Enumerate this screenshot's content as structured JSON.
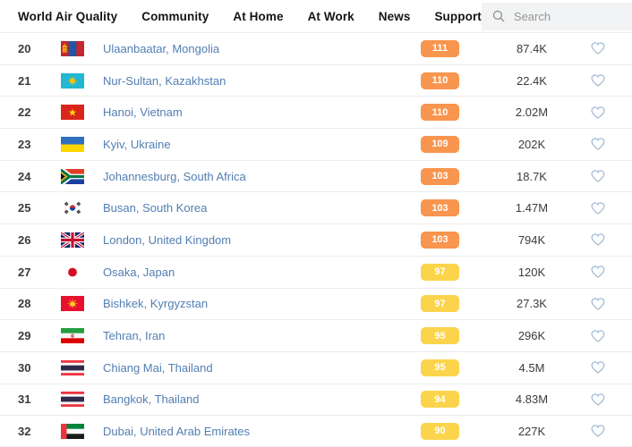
{
  "nav": {
    "items": [
      {
        "label": "World Air Quality"
      },
      {
        "label": "Community"
      },
      {
        "label": "At Home"
      },
      {
        "label": "At Work"
      },
      {
        "label": "News"
      },
      {
        "label": "Support"
      }
    ],
    "search": {
      "placeholder": "Search"
    }
  },
  "aqi_colors": {
    "orange": "#f8954e",
    "yellow": "#fbd44c"
  },
  "table": {
    "rows": [
      {
        "rank": "20",
        "flag": "mongolia",
        "city": "Ulaanbaatar, Mongolia",
        "aqi": "111",
        "level": "orange",
        "followers": "87.4K"
      },
      {
        "rank": "21",
        "flag": "kazakhstan",
        "city": "Nur-Sultan, Kazakhstan",
        "aqi": "110",
        "level": "orange",
        "followers": "22.4K"
      },
      {
        "rank": "22",
        "flag": "vietnam",
        "city": "Hanoi, Vietnam",
        "aqi": "110",
        "level": "orange",
        "followers": "2.02M"
      },
      {
        "rank": "23",
        "flag": "ukraine",
        "city": "Kyiv, Ukraine",
        "aqi": "109",
        "level": "orange",
        "followers": "202K"
      },
      {
        "rank": "24",
        "flag": "south-africa",
        "city": "Johannesburg, South Africa",
        "aqi": "103",
        "level": "orange",
        "followers": "18.7K"
      },
      {
        "rank": "25",
        "flag": "south-korea",
        "city": "Busan, South Korea",
        "aqi": "103",
        "level": "orange",
        "followers": "1.47M"
      },
      {
        "rank": "26",
        "flag": "united-kingdom",
        "city": "London, United Kingdom",
        "aqi": "103",
        "level": "orange",
        "followers": "794K"
      },
      {
        "rank": "27",
        "flag": "japan",
        "city": "Osaka, Japan",
        "aqi": "97",
        "level": "yellow",
        "followers": "120K"
      },
      {
        "rank": "28",
        "flag": "kyrgyzstan",
        "city": "Bishkek, Kyrgyzstan",
        "aqi": "97",
        "level": "yellow",
        "followers": "27.3K"
      },
      {
        "rank": "29",
        "flag": "iran",
        "city": "Tehran, Iran",
        "aqi": "95",
        "level": "yellow",
        "followers": "296K"
      },
      {
        "rank": "30",
        "flag": "thailand",
        "city": "Chiang Mai, Thailand",
        "aqi": "95",
        "level": "yellow",
        "followers": "4.5M"
      },
      {
        "rank": "31",
        "flag": "thailand",
        "city": "Bangkok, Thailand",
        "aqi": "94",
        "level": "yellow",
        "followers": "4.83M"
      },
      {
        "rank": "32",
        "flag": "uae",
        "city": "Dubai, United Arab Emirates",
        "aqi": "90",
        "level": "yellow",
        "followers": "227K"
      }
    ]
  }
}
